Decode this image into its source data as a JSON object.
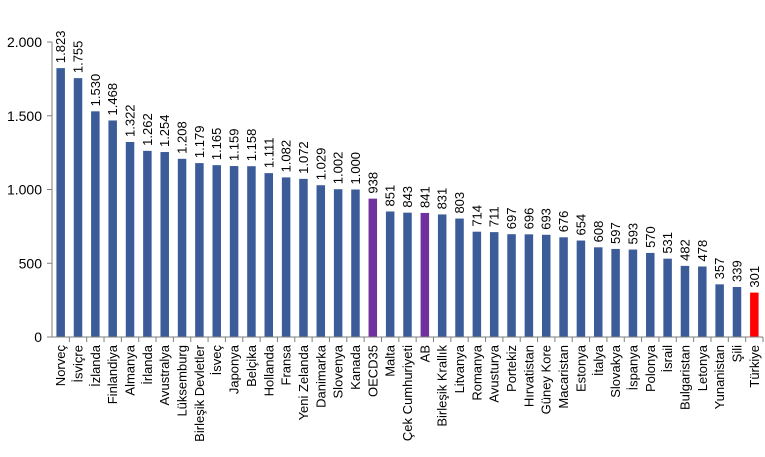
{
  "chart_data": {
    "type": "bar",
    "title": "",
    "xlabel": "",
    "ylabel": "",
    "ylim": [
      0,
      2000
    ],
    "yticks": [
      0,
      500,
      1000,
      1500,
      2000
    ],
    "ytick_labels": [
      "0",
      "500",
      "1.000",
      "1.500",
      "2.000"
    ],
    "grid": false,
    "categories": [
      "Norveç",
      "İsviçre",
      "İzlanda",
      "Finlandiya",
      "Almanya",
      "İrlanda",
      "Avustralya",
      "Lüksemburg",
      "Birleşik Devletler",
      "İsveç",
      "Japonya",
      "Belçika",
      "Hollanda",
      "Fransa",
      "Yeni Zelanda",
      "Danimarka",
      "Slovenya",
      "Kanada",
      "OECD35",
      "Malta",
      "Çek Cumhuriyeti",
      "AB",
      "Birleşik Krallık",
      "Litvanya",
      "Romanya",
      "Avusturya",
      "Portekiz",
      "Hırvatistan",
      "Güney Kore",
      "Macaristan",
      "Estonya",
      "İtalya",
      "Slovakya",
      "İspanya",
      "Polonya",
      "İsrail",
      "Bulgaristan",
      "Letonya",
      "Yunanistan",
      "Şili",
      "Türkiye"
    ],
    "values": [
      1823,
      1755,
      1530,
      1468,
      1322,
      1262,
      1254,
      1208,
      1179,
      1165,
      1159,
      1158,
      1111,
      1082,
      1072,
      1029,
      1002,
      1000,
      938,
      851,
      843,
      841,
      831,
      803,
      714,
      711,
      697,
      696,
      693,
      676,
      654,
      608,
      597,
      593,
      570,
      531,
      482,
      478,
      357,
      339,
      301
    ],
    "value_labels": [
      "1.823",
      "1.755",
      "1.530",
      "1.468",
      "1.322",
      "1.262",
      "1.254",
      "1.208",
      "1.179",
      "1.165",
      "1.159",
      "1.158",
      "1.111",
      "1.082",
      "1.072",
      "1.029",
      "1.002",
      "1.000",
      "938",
      "851",
      "843",
      "841",
      "831",
      "803",
      "714",
      "711",
      "697",
      "696",
      "693",
      "676",
      "654",
      "608",
      "597",
      "593",
      "570",
      "531",
      "482",
      "478",
      "357",
      "339",
      "301"
    ],
    "colors": {
      "default": "#3c5c99",
      "highlight": "#7030a0",
      "turkey": "#ff0000"
    },
    "highlight_categories": [
      "OECD35",
      "AB"
    ],
    "red_categories": [
      "Türkiye"
    ]
  }
}
